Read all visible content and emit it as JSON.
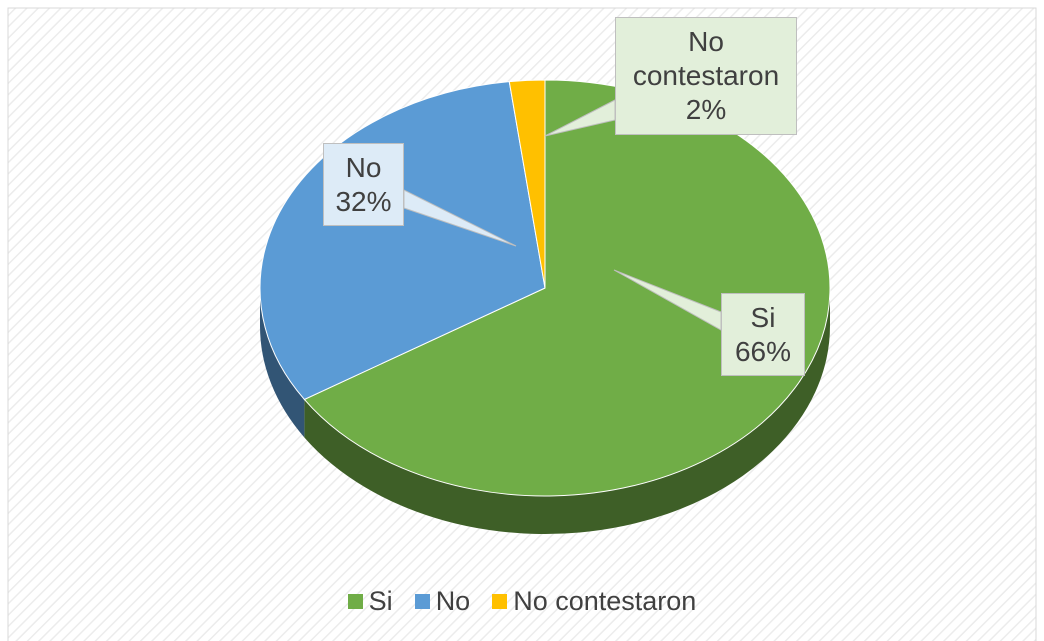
{
  "chart_data": {
    "type": "pie",
    "categories": [
      "Si",
      "No",
      "No contestaron"
    ],
    "values": [
      66,
      32,
      2
    ],
    "value_labels": [
      "66%",
      "32%",
      "2%"
    ],
    "colors": [
      "#70ad47",
      "#5b9bd5",
      "#ffc000"
    ],
    "legend": "bottom"
  }
}
